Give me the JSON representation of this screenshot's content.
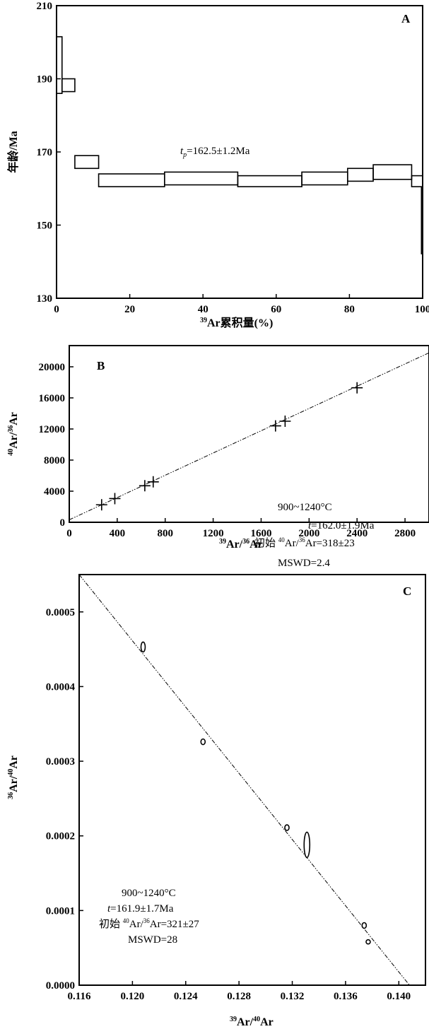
{
  "chart_data": [
    {
      "panel": "A",
      "type": "step",
      "xlabel": "Ar累积量(%)",
      "xlabel_sup": "39",
      "ylabel": "年龄/Ma",
      "xlim": [
        0,
        100
      ],
      "ylim": [
        130,
        210
      ],
      "xticks": [
        "0",
        "20",
        "40",
        "60",
        "80",
        "100"
      ],
      "yticks": [
        "130",
        "150",
        "170",
        "190",
        "210"
      ],
      "annotation": {
        "t": "t",
        "sub": "p",
        "text": "=162.5±1.2Ma"
      },
      "boxes": [
        {
          "x0": 0,
          "x1": 1.5,
          "ylo": 186,
          "yhi": 201.5
        },
        {
          "x0": 1.5,
          "x1": 5,
          "ylo": 186.5,
          "yhi": 190
        },
        {
          "x0": 5,
          "x1": 11.5,
          "ylo": 165.5,
          "yhi": 169
        },
        {
          "x0": 11.5,
          "x1": 29.5,
          "ylo": 160.5,
          "yhi": 164
        },
        {
          "x0": 29.5,
          "x1": 49.5,
          "ylo": 161,
          "yhi": 164.5
        },
        {
          "x0": 49.5,
          "x1": 67,
          "ylo": 160.5,
          "yhi": 163.5
        },
        {
          "x0": 67,
          "x1": 79.5,
          "ylo": 161,
          "yhi": 164.5
        },
        {
          "x0": 79.5,
          "x1": 86.5,
          "ylo": 162,
          "yhi": 165.5
        },
        {
          "x0": 86.5,
          "x1": 97,
          "ylo": 162.5,
          "yhi": 166.5
        },
        {
          "x0": 97,
          "x1": 100,
          "ylo": 160.5,
          "yhi": 163.5
        }
      ],
      "tail": {
        "x": 100,
        "ylo": 142,
        "yhi": 160.5
      }
    },
    {
      "panel": "B",
      "type": "scatter",
      "xlabel": "Ar/Ar",
      "xlabel_sups": [
        "39",
        "36"
      ],
      "ylabel": "Ar/Ar",
      "ylabel_sups": [
        "40",
        "36"
      ],
      "xlim": [
        0,
        3000
      ],
      "ylim": [
        0,
        22000
      ],
      "xticks": [
        "0",
        "400",
        "800",
        "1200",
        "1600",
        "2000",
        "2400",
        "2800"
      ],
      "yticks": [
        "0",
        "4000",
        "8000",
        "12000",
        "16000",
        "20000"
      ],
      "points": [
        {
          "x": 270,
          "y": 2250
        },
        {
          "x": 380,
          "y": 3050
        },
        {
          "x": 630,
          "y": 4700
        },
        {
          "x": 700,
          "y": 5200
        },
        {
          "x": 1720,
          "y": 12400
        },
        {
          "x": 1800,
          "y": 13000
        },
        {
          "x": 2400,
          "y": 17300
        }
      ],
      "fit_line": {
        "x0": 0,
        "y0": 318,
        "x1": 3000,
        "y1": 21800
      },
      "annotations": [
        "900~1240°C",
        "t=162.0±1.9Ma",
        "初始 Ar/ Ar=318±23",
        "MSWD=2.4"
      ]
    },
    {
      "panel": "C",
      "type": "scatter",
      "xlabel": "Ar/Ar",
      "xlabel_sups": [
        "39",
        "40"
      ],
      "ylabel": "Ar/Ar",
      "ylabel_sups": [
        "36",
        "40"
      ],
      "xlim": [
        0.116,
        0.142
      ],
      "ylim": [
        0.0,
        0.00055
      ],
      "xticks": [
        "0.116",
        "0.120",
        "0.124",
        "0.128",
        "0.132",
        "0.136",
        "0.140"
      ],
      "yticks": [
        "0.0000",
        "0.0001",
        "0.0002",
        "0.0003",
        "0.0004",
        "0.0005"
      ],
      "points": [
        {
          "x": 0.1208,
          "y": 0.000453
        },
        {
          "x": 0.1253,
          "y": 0.000326
        },
        {
          "x": 0.1316,
          "y": 0.000211
        },
        {
          "x": 0.1331,
          "y": 0.000188
        },
        {
          "x": 0.1374,
          "y": 8e-05
        },
        {
          "x": 0.1377,
          "y": 5.8e-05
        }
      ],
      "fit_line": {
        "x0": 0.116,
        "y0": 0.00055,
        "x1": 0.1408,
        "y1": 0.0
      },
      "annotations": [
        "900~1240°C",
        "t=161.9±1.7Ma",
        "初始 Ar/ Ar=321±27",
        "MSWD=28"
      ]
    }
  ]
}
